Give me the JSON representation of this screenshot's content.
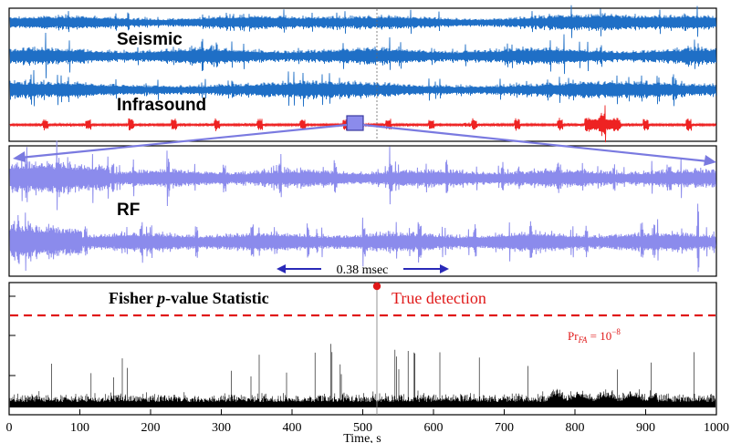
{
  "colors": {
    "seismic": "#1f6fc6",
    "infrasound": "#ee2222",
    "rf": "#8b8bec",
    "arrow_rf": "#7a7ae0",
    "arrow_dark": "#2a2ab8",
    "stat": "#000000",
    "threshold": "#e01818",
    "detection": "#e01818"
  },
  "chart_data": [
    {
      "type": "line",
      "panel": "top",
      "series": [
        {
          "name": "Seismic",
          "color": "#1f6fc6"
        },
        {
          "name": "Seismic",
          "color": "#1f6fc6"
        },
        {
          "name": "Seismic",
          "color": "#1f6fc6"
        },
        {
          "name": "Infrasound",
          "color": "#ee2222"
        }
      ],
      "labels": {
        "seismic": "Seismic",
        "infrasound": "Infrasound"
      },
      "xlim": [
        0,
        1000
      ],
      "marker_x": 520
    },
    {
      "type": "line",
      "panel": "middle",
      "series": [
        {
          "name": "RF",
          "color": "#8b8bec"
        },
        {
          "name": "RF",
          "color": "#8b8bec"
        }
      ],
      "labels": {
        "rf": "RF",
        "duration": "0.38 msec"
      },
      "zoom_window_x": 480
    },
    {
      "type": "line",
      "panel": "bottom",
      "title": "Fisher p-value Statistic",
      "title_parts": {
        "before": "Fisher ",
        "italic": "p",
        "after": "-value Statistic"
      },
      "xlabel": "Time, s",
      "xlim": [
        0,
        1000
      ],
      "xticks": [
        0,
        100,
        200,
        300,
        400,
        500,
        600,
        700,
        800,
        900,
        1000
      ],
      "xtick_labels": [
        "0",
        "100",
        "200",
        "300",
        "400",
        "500",
        "600",
        "700",
        "800",
        "900",
        "1000"
      ],
      "series": [
        {
          "name": "Fisher statistic",
          "color": "#000000"
        }
      ],
      "threshold": {
        "label": "Pr_FA = 10^-8",
        "label_parts": {
          "pr": "Pr",
          "sub": "FA",
          "eq": " = 10",
          "sup": "−8"
        }
      },
      "detection": {
        "x": 520,
        "label": "True detection"
      }
    }
  ]
}
